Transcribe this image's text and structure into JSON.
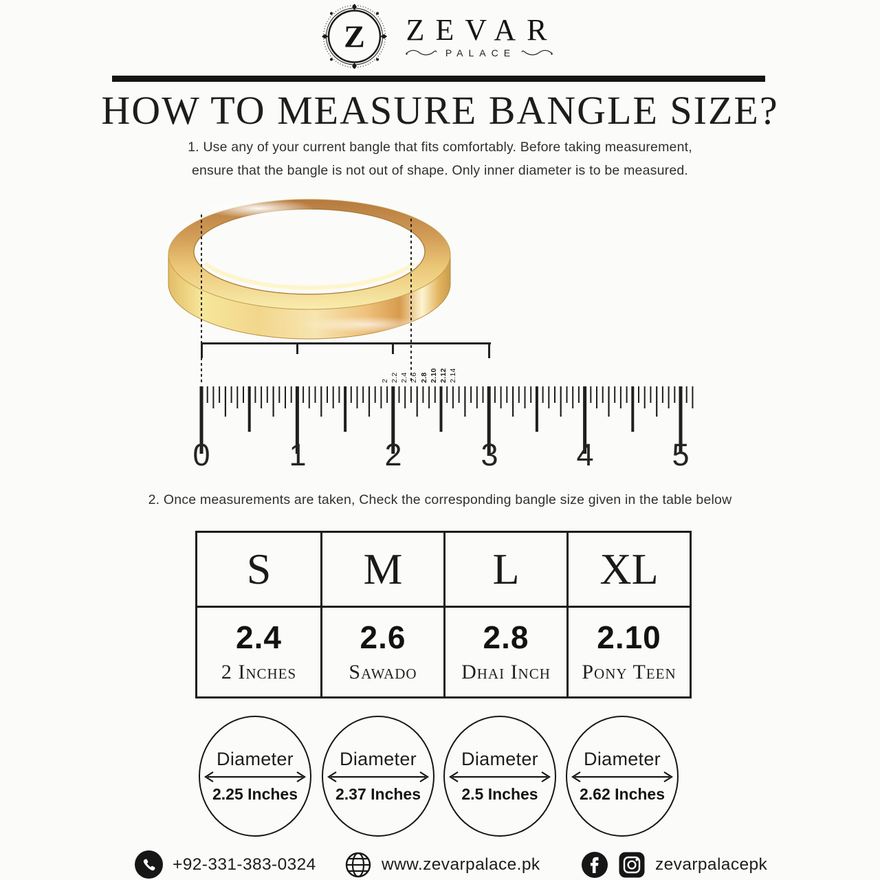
{
  "brand": {
    "monogram": "Z",
    "name": "ZEVAR",
    "tagline": "PALACE"
  },
  "title": "HOW TO MEASURE BANGLE SIZE?",
  "steps": {
    "step1_line1": "1. Use any of your current bangle that fits comfortably. Before taking measurement,",
    "step1_line2": "ensure that the bangle is not out of shape. Only inner diameter is to be measured.",
    "step2": "2. Once measurements are taken, Check the corresponding bangle size given in the table below"
  },
  "ruler": {
    "unit_numbers": [
      "0",
      "1",
      "2",
      "3",
      "4",
      "5"
    ],
    "fraction_labels": [
      "2",
      "2.2",
      "2.4",
      "2.6",
      "2.8",
      "2.10",
      "2.12",
      "2.14"
    ]
  },
  "size_table": {
    "rows": [
      {
        "size": "S",
        "value": "2.4",
        "name": "2 Inches"
      },
      {
        "size": "M",
        "value": "2.6",
        "name": "Sawado"
      },
      {
        "size": "L",
        "value": "2.8",
        "name": "Dhai Inch"
      },
      {
        "size": "XL",
        "value": "2.10",
        "name": "Pony Teen"
      }
    ]
  },
  "diameter_circles": [
    {
      "label": "Diameter",
      "value": "2.25 Inches"
    },
    {
      "label": "Diameter",
      "value": "2.37 Inches"
    },
    {
      "label": "Diameter",
      "value": "2.5 Inches"
    },
    {
      "label": "Diameter",
      "value": "2.62 Inches"
    }
  ],
  "footer": {
    "phone": "+92-331-383-0324",
    "website": "www.zevarpalace.pk",
    "social_handle": "zevarpalacepk"
  },
  "colors": {
    "ink": "#1c1c1c",
    "background": "#fbfbf9",
    "gold_light": "#f8ecae",
    "gold_mid": "#e2b363",
    "gold_deep": "#b5793f"
  }
}
